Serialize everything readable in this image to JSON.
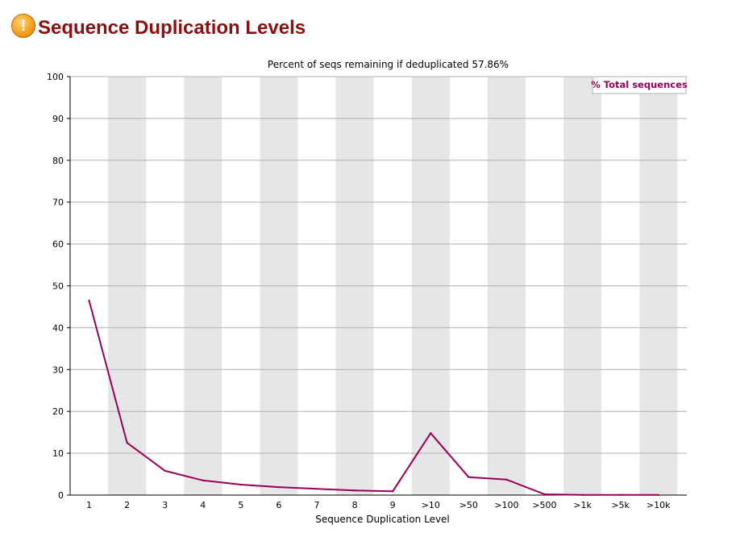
{
  "page": {
    "title": "Sequence Duplication Levels",
    "status_icon": "warning-icon",
    "status_icon_glyph": "!"
  },
  "chart_data": {
    "type": "line",
    "title": "Percent of seqs remaining if deduplicated 57.86%",
    "xlabel": "Sequence Duplication Level",
    "ylabel": "",
    "ylim": [
      0,
      100
    ],
    "yticks": [
      0,
      10,
      20,
      30,
      40,
      50,
      60,
      70,
      80,
      90,
      100
    ],
    "categories": [
      "1",
      "2",
      "3",
      "4",
      "5",
      "6",
      "7",
      "8",
      "9",
      ">10",
      ">50",
      ">100",
      ">500",
      ">1k",
      ">5k",
      ">10k"
    ],
    "grid": true,
    "legend_position": "top-right",
    "series": [
      {
        "name": "% Total sequences",
        "color": "#990055",
        "values": [
          46.5,
          12.5,
          5.8,
          3.5,
          2.5,
          1.9,
          1.5,
          1.1,
          0.9,
          14.8,
          4.3,
          3.7,
          0.2,
          0.05,
          0.03,
          0.03
        ]
      }
    ],
    "colors": {
      "band": "#e6e6e6",
      "gridline": "#b0b0b0",
      "axis": "#000000"
    }
  }
}
